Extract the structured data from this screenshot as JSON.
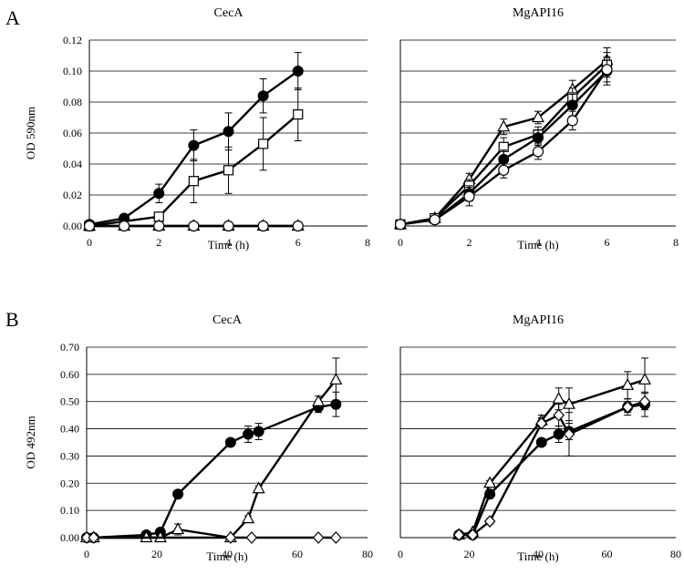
{
  "panels": [
    {
      "letter": "A"
    },
    {
      "letter": "B"
    }
  ],
  "chart_data": [
    {
      "type": "line",
      "title": "CecA",
      "xlabel": "Time (h)",
      "ylabel": "OD 590nm",
      "xlim": [
        0,
        8
      ],
      "ylim": [
        0,
        0.12
      ],
      "xticks": [
        "0",
        "2",
        "4",
        "6",
        "8"
      ],
      "yticks": [
        "0.00",
        "0.02",
        "0.04",
        "0.06",
        "0.08",
        "0.10",
        "0.12"
      ],
      "grid": true,
      "series": [
        {
          "name": "filled circle",
          "marker": "circle-filled",
          "points": [
            [
              0,
              0.001
            ],
            [
              1,
              0.005
            ],
            [
              2,
              0.021
            ],
            [
              3,
              0.052
            ],
            [
              4,
              0.061
            ],
            [
              5,
              0.084
            ],
            [
              6,
              0.1
            ]
          ],
          "errors": [
            0,
            0.001,
            0.006,
            0.01,
            0.012,
            0.011,
            0.012
          ]
        },
        {
          "name": "open square",
          "marker": "square-open",
          "points": [
            [
              0,
              0
            ],
            [
              2,
              0.006
            ],
            [
              3,
              0.029
            ],
            [
              4,
              0.036
            ],
            [
              5,
              0.053
            ],
            [
              6,
              0.072
            ]
          ],
          "errors": [
            0,
            0.002,
            0.014,
            0.015,
            0.017,
            0.017
          ]
        },
        {
          "name": "open triangle",
          "marker": "triangle-open",
          "points": [
            [
              0,
              0
            ],
            [
              1,
              0
            ],
            [
              2,
              0
            ],
            [
              3,
              0
            ],
            [
              4,
              0
            ],
            [
              5,
              0
            ],
            [
              6,
              0
            ]
          ],
          "errors": [
            0,
            0,
            0,
            0,
            0,
            0,
            0
          ]
        },
        {
          "name": "open circle",
          "marker": "circle-open",
          "points": [
            [
              0,
              0
            ],
            [
              1,
              0
            ],
            [
              2,
              0
            ],
            [
              3,
              0
            ],
            [
              4,
              0
            ],
            [
              5,
              0
            ],
            [
              6,
              0
            ]
          ],
          "errors": [
            0,
            0,
            0,
            0,
            0,
            0,
            0
          ]
        }
      ]
    },
    {
      "type": "line",
      "title": "MgAPI16",
      "xlabel": "Time (h)",
      "ylabel": "",
      "xlim": [
        0,
        8
      ],
      "ylim": [
        0,
        0.12
      ],
      "xticks": [
        "0",
        "2",
        "4",
        "6",
        "8"
      ],
      "yticks": [],
      "grid": true,
      "series": [
        {
          "name": "open triangle",
          "marker": "triangle-open",
          "points": [
            [
              0,
              0.001
            ],
            [
              1,
              0.005
            ],
            [
              2,
              0.03
            ],
            [
              3,
              0.064
            ],
            [
              4,
              0.07
            ],
            [
              5,
              0.088
            ],
            [
              6,
              0.107
            ]
          ],
          "errors": [
            0,
            0.001,
            0.004,
            0.005,
            0.004,
            0.006,
            0.008
          ]
        },
        {
          "name": "open square",
          "marker": "square-open",
          "points": [
            [
              0,
              0.001
            ],
            [
              1,
              0.005
            ],
            [
              2,
              0.026
            ],
            [
              3,
              0.051
            ],
            [
              4,
              0.059
            ],
            [
              5,
              0.083
            ],
            [
              6,
              0.104
            ]
          ],
          "errors": [
            0,
            0.001,
            0.004,
            0.006,
            0.005,
            0.006,
            0.008
          ]
        },
        {
          "name": "filled circle",
          "marker": "circle-filled",
          "points": [
            [
              0,
              0.001
            ],
            [
              1,
              0.004
            ],
            [
              2,
              0.021
            ],
            [
              3,
              0.043
            ],
            [
              4,
              0.057
            ],
            [
              5,
              0.078
            ],
            [
              6,
              0.1
            ]
          ],
          "errors": [
            0,
            0.001,
            0.005,
            0.006,
            0.005,
            0.007,
            0.009
          ]
        },
        {
          "name": "open circle",
          "marker": "circle-open",
          "points": [
            [
              0,
              0.001
            ],
            [
              1,
              0.004
            ],
            [
              2,
              0.019
            ],
            [
              3,
              0.036
            ],
            [
              4,
              0.048
            ],
            [
              5,
              0.068
            ],
            [
              6,
              0.101
            ]
          ],
          "errors": [
            0,
            0.001,
            0.006,
            0.005,
            0.005,
            0.006,
            0.008
          ]
        }
      ]
    },
    {
      "type": "line",
      "title": "CecA",
      "xlabel": "Time (h)",
      "ylabel": "OD 492nm",
      "xlim": [
        0,
        80
      ],
      "ylim": [
        0,
        0.7
      ],
      "xticks": [
        "0",
        "20",
        "40",
        "60",
        "80"
      ],
      "yticks": [
        "0.00",
        "0.10",
        "0.20",
        "0.30",
        "0.40",
        "0.50",
        "0.60",
        "0.70"
      ],
      "grid": true,
      "series": [
        {
          "name": "filled circle",
          "marker": "circle-filled",
          "points": [
            [
              0,
              0
            ],
            [
              2,
              0
            ],
            [
              17,
              0.01
            ],
            [
              21,
              0.02
            ],
            [
              26,
              0.16
            ],
            [
              41,
              0.35
            ],
            [
              46,
              0.38
            ],
            [
              49,
              0.39
            ],
            [
              66,
              0.48
            ],
            [
              71,
              0.49
            ]
          ],
          "errors": [
            0,
            0,
            0.01,
            0.01,
            0.01,
            0.01,
            0.03,
            0.03,
            0.02,
            0.045
          ]
        },
        {
          "name": "open triangle",
          "marker": "triangle-open",
          "points": [
            [
              0,
              0
            ],
            [
              2,
              0
            ],
            [
              17,
              0
            ],
            [
              21,
              0
            ],
            [
              26,
              0.03
            ],
            [
              41,
              0
            ],
            [
              46,
              0.07
            ],
            [
              49,
              0.18
            ],
            [
              66,
              0.5
            ],
            [
              71,
              0.58
            ]
          ],
          "errors": [
            0,
            0,
            0,
            0,
            0.02,
            0,
            0.01,
            0.01,
            0.02,
            0.08
          ]
        },
        {
          "name": "open diamond",
          "marker": "diamond-open",
          "points": [
            [
              0,
              0
            ],
            [
              2,
              0
            ],
            [
              41,
              0
            ],
            [
              47,
              0
            ],
            [
              66,
              0
            ],
            [
              71,
              0
            ]
          ],
          "errors": [
            0,
            0,
            0,
            0,
            0,
            0
          ]
        }
      ]
    },
    {
      "type": "line",
      "title": "MgAPI16",
      "xlabel": "Time (h)",
      "ylabel": "",
      "xlim": [
        0,
        80
      ],
      "ylim": [
        0,
        0.7
      ],
      "xticks": [
        "0",
        "20",
        "40",
        "60",
        "80"
      ],
      "yticks": [],
      "grid": true,
      "series": [
        {
          "name": "open triangle",
          "marker": "triangle-open",
          "points": [
            [
              17,
              0.01
            ],
            [
              21,
              0.02
            ],
            [
              26,
              0.2
            ],
            [
              41,
              0.43
            ],
            [
              46,
              0.51
            ],
            [
              49,
              0.49
            ],
            [
              66,
              0.56
            ],
            [
              71,
              0.58
            ]
          ],
          "errors": [
            0,
            0,
            0.01,
            0.02,
            0.04,
            0.06,
            0.05,
            0.08
          ]
        },
        {
          "name": "filled circle",
          "marker": "circle-filled",
          "points": [
            [
              17,
              0.01
            ],
            [
              21,
              0.01
            ],
            [
              26,
              0.16
            ],
            [
              41,
              0.35
            ],
            [
              46,
              0.38
            ],
            [
              49,
              0.39
            ],
            [
              66,
              0.48
            ],
            [
              71,
              0.49
            ]
          ],
          "errors": [
            0,
            0,
            0.01,
            0.01,
            0.03,
            0.03,
            0.02,
            0.045
          ]
        },
        {
          "name": "open diamond",
          "marker": "diamond-open",
          "points": [
            [
              17,
              0.01
            ],
            [
              21,
              0.01
            ],
            [
              26,
              0.06
            ],
            [
              41,
              0.42
            ],
            [
              46,
              0.45
            ],
            [
              49,
              0.38
            ],
            [
              66,
              0.48
            ],
            [
              71,
              0.5
            ]
          ],
          "errors": [
            0,
            0,
            0.01,
            0.02,
            0.04,
            0.08,
            0.03,
            0.03
          ]
        }
      ]
    }
  ]
}
